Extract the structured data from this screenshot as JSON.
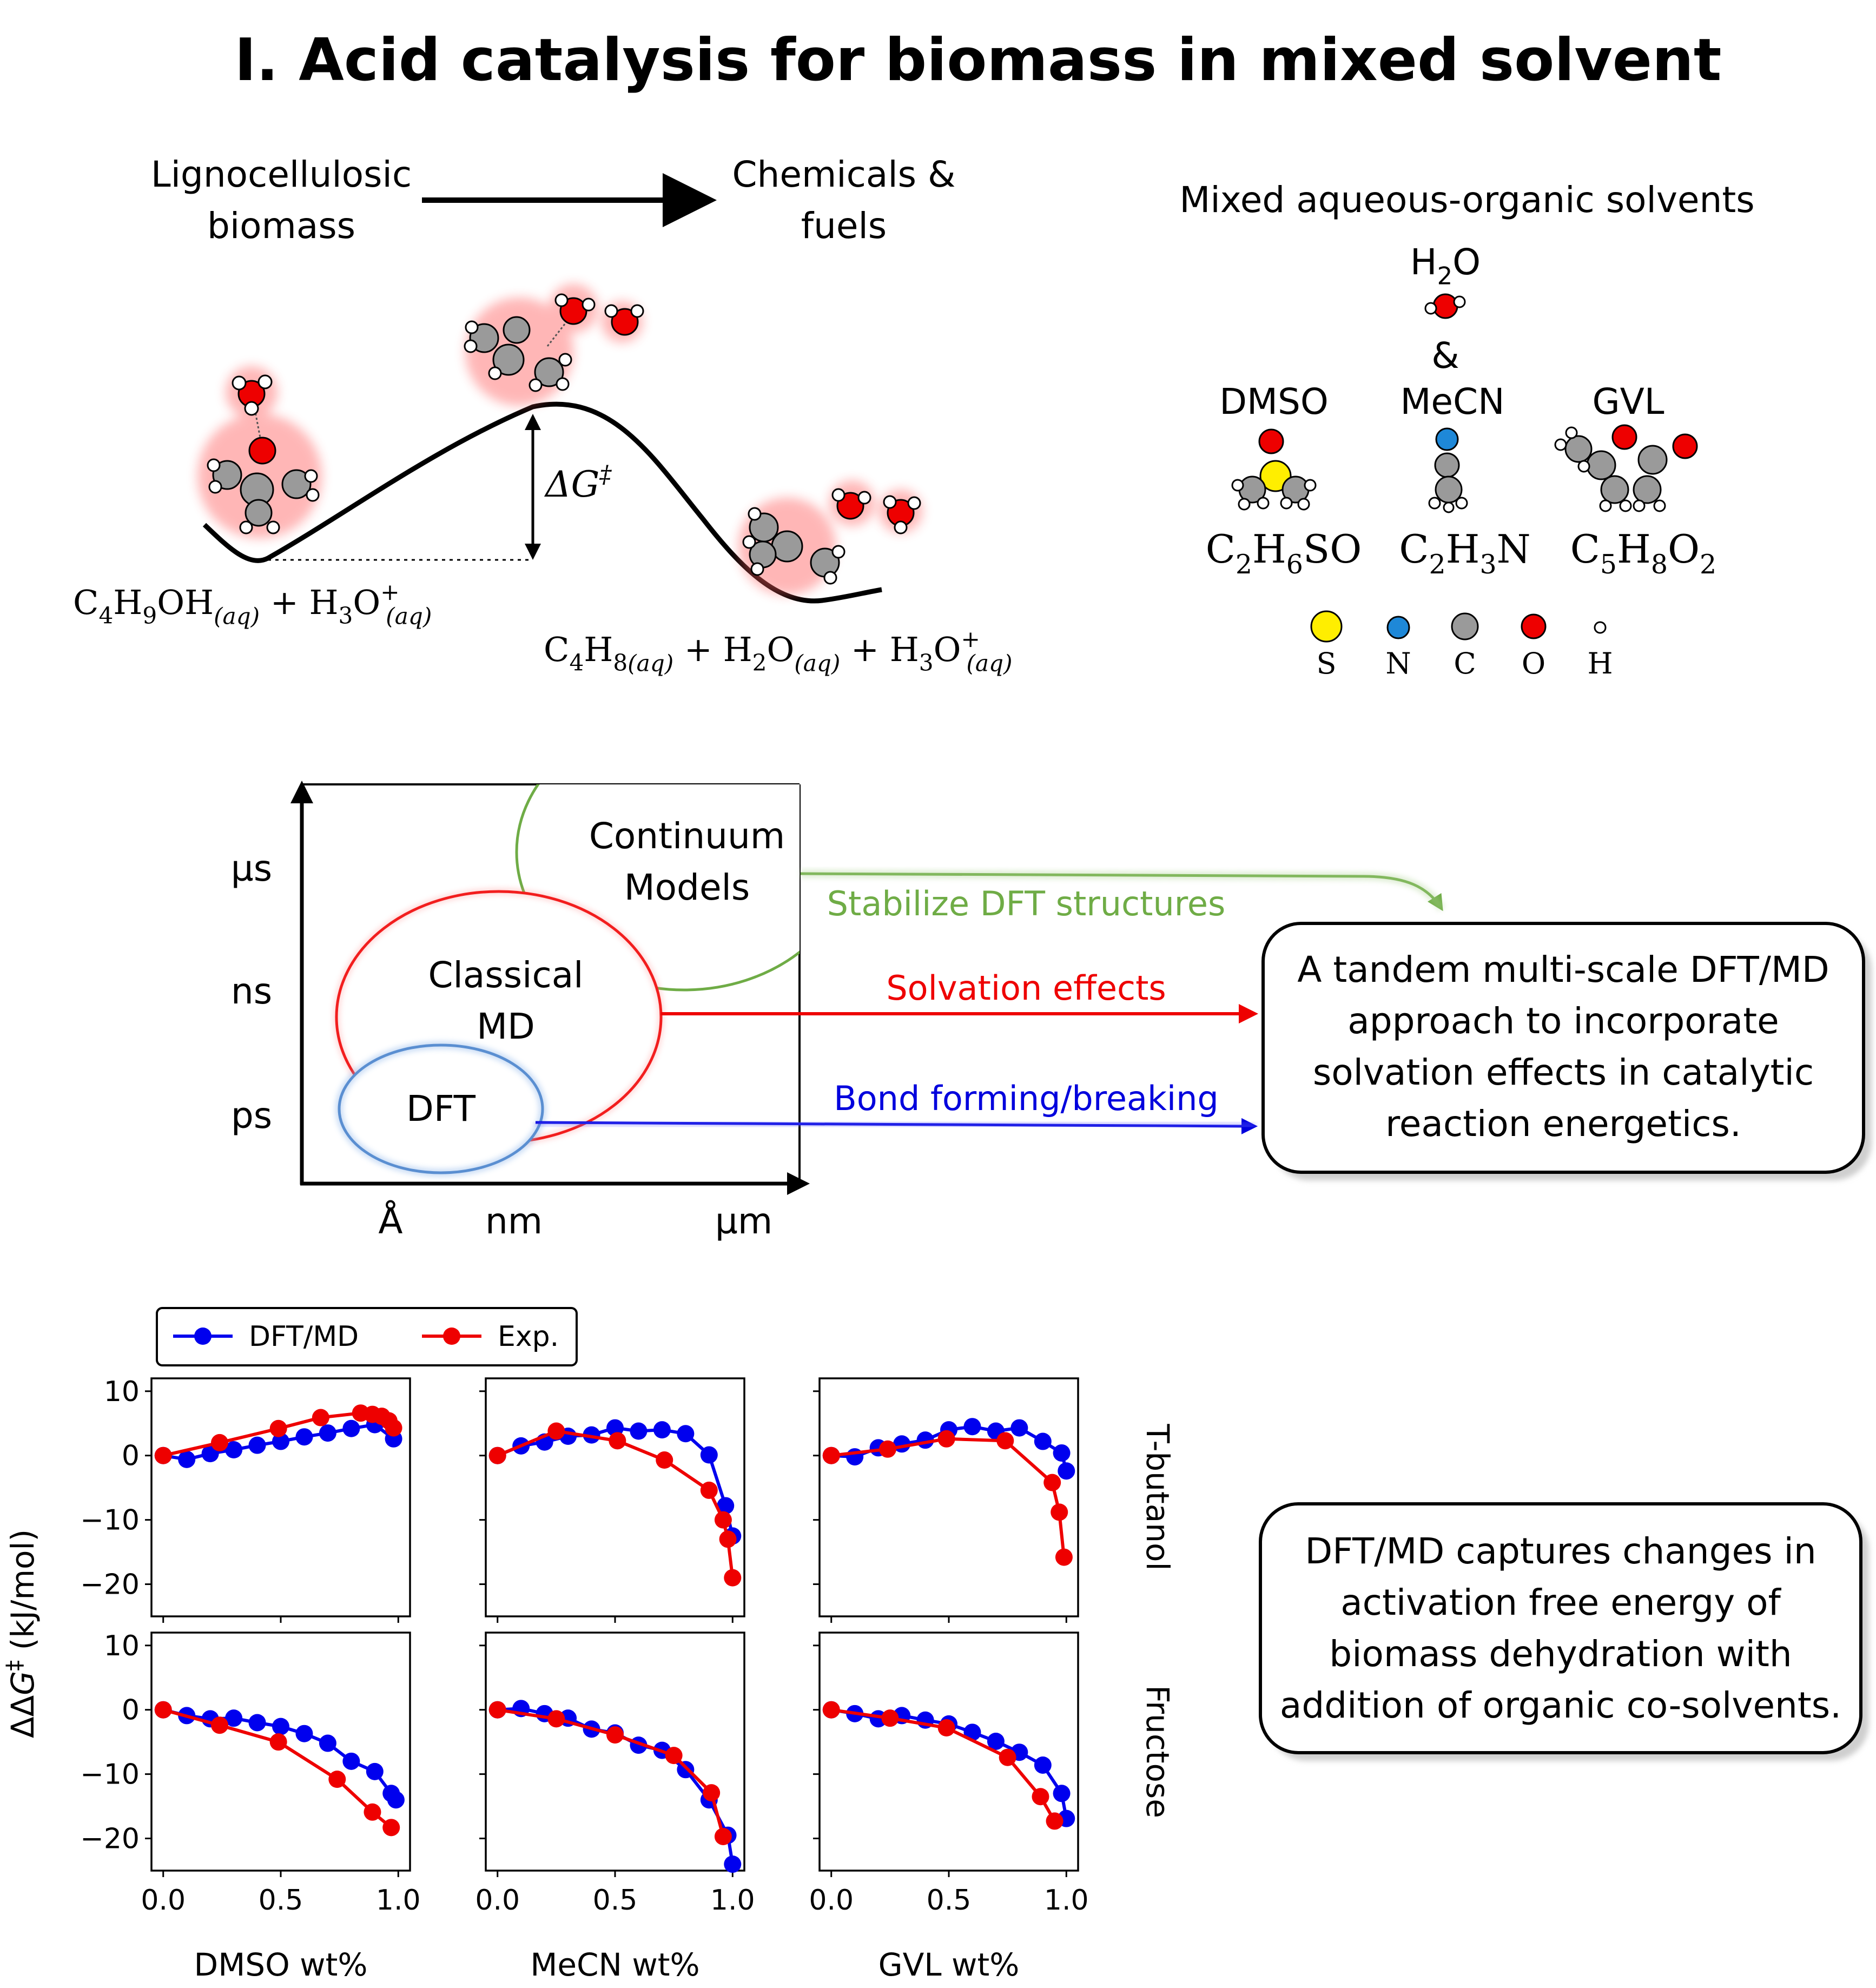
{
  "title": "I. Acid catalysis for biomass in mixed solvent",
  "reaction_scheme": {
    "from_label": [
      "Lignocellulosic",
      "biomass"
    ],
    "to_label": [
      "Chemicals &",
      "fuels"
    ]
  },
  "energy_profile": {
    "barrier_label": "ΔG‡",
    "reactants": "C4H9OH(aq) + H3O+(aq)",
    "products": "C4H8(aq) + H2O(aq) + H3O+(aq)"
  },
  "solvents": {
    "heading": "Mixed aqueous-organic solvents",
    "water": "H2O",
    "ampersand": "&",
    "items": [
      {
        "name": "DMSO",
        "formula": "C2H6SO"
      },
      {
        "name": "MeCN",
        "formula": "C2H3N"
      },
      {
        "name": "GVL",
        "formula": "C5H8O2"
      }
    ],
    "atom_legend": [
      {
        "symbol": "S",
        "color": "#ffee00"
      },
      {
        "symbol": "N",
        "color": "#1e88d8"
      },
      {
        "symbol": "C",
        "color": "#9a9a9a"
      },
      {
        "symbol": "O",
        "color": "#ee0000"
      },
      {
        "symbol": "H",
        "color": "#ffffff"
      }
    ]
  },
  "multiscale": {
    "y_ticks": [
      "µs",
      "ns",
      "ps"
    ],
    "x_ticks": [
      "Å",
      "nm",
      "µm"
    ],
    "regions": {
      "continuum": [
        "Continuum",
        "Models"
      ],
      "classical": [
        "Classical",
        "MD"
      ],
      "dft": "DFT"
    },
    "arrows": [
      {
        "label": "Stabilize DFT structures",
        "color": "#6fac46"
      },
      {
        "label": "Solvation effects",
        "color": "#ee0000"
      },
      {
        "label": "Bond forming/breaking",
        "color": "#0000dd"
      }
    ],
    "summary_box": [
      "A tandem multi-scale DFT/MD",
      "approach to incorporate",
      "solvation effects in catalytic",
      "reaction energetics."
    ]
  },
  "conclusion_box": [
    "DFT/MD captures changes in",
    "activation free energy of",
    "biomass dehydration with",
    "addition of organic co-solvents."
  ],
  "chart_data": {
    "type": "line",
    "ylabel": "ΔΔG‡ (kJ/mol)",
    "ylim": [
      -25,
      12
    ],
    "y_ticks": [
      10,
      0,
      -10,
      -20
    ],
    "xlim": [
      -0.05,
      1.05
    ],
    "x_ticks": [
      "0.0",
      "0.5",
      "1.0"
    ],
    "x_tick_values": [
      0,
      0.5,
      1
    ],
    "legend": [
      {
        "name": "DFT/MD",
        "color": "#0000ee"
      },
      {
        "name": "Exp.",
        "color": "#ee0000"
      }
    ],
    "columns": [
      "DMSO wt%",
      "MeCN wt%",
      "GVL wt%"
    ],
    "rows": [
      "T-butanol",
      "Fructose"
    ],
    "panels": [
      {
        "row": 0,
        "col": 0,
        "series": [
          {
            "name": "DFT/MD",
            "x": [
              0,
              0.1,
              0.2,
              0.3,
              0.4,
              0.5,
              0.6,
              0.7,
              0.8,
              0.9,
              0.98
            ],
            "y": [
              0,
              -0.6,
              0.3,
              0.9,
              1.6,
              2.2,
              2.9,
              3.5,
              4.2,
              4.8,
              2.6
            ]
          },
          {
            "name": "Exp.",
            "x": [
              0,
              0.24,
              0.49,
              0.67,
              0.84,
              0.89,
              0.93,
              0.96,
              0.98
            ],
            "y": [
              0,
              2,
              4.2,
              5.9,
              6.6,
              6.4,
              6.1,
              5.4,
              4.3
            ]
          }
        ]
      },
      {
        "row": 0,
        "col": 1,
        "series": [
          {
            "name": "DFT/MD",
            "x": [
              0,
              0.1,
              0.2,
              0.3,
              0.4,
              0.5,
              0.6,
              0.7,
              0.8,
              0.9,
              0.97,
              1.0
            ],
            "y": [
              0,
              1.5,
              2.1,
              3,
              3.2,
              4.3,
              3.8,
              4,
              3.4,
              0.1,
              -7.8,
              -12.5
            ]
          },
          {
            "name": "Exp.",
            "x": [
              0,
              0.25,
              0.51,
              0.71,
              0.9,
              0.96,
              0.98,
              1.0
            ],
            "y": [
              0,
              3.8,
              2.3,
              -0.7,
              -5.4,
              -10,
              -13,
              -19
            ]
          }
        ]
      },
      {
        "row": 0,
        "col": 2,
        "series": [
          {
            "name": "DFT/MD",
            "x": [
              0,
              0.1,
              0.2,
              0.3,
              0.4,
              0.5,
              0.6,
              0.7,
              0.8,
              0.9,
              0.98,
              1.0
            ],
            "y": [
              0,
              -0.2,
              1.2,
              1.8,
              2.4,
              4,
              4.5,
              3.8,
              4.3,
              2.2,
              0.4,
              -2.4
            ]
          },
          {
            "name": "Exp.",
            "x": [
              0,
              0.24,
              0.49,
              0.74,
              0.94,
              0.97,
              0.99
            ],
            "y": [
              0,
              1,
              2.6,
              2.3,
              -4.2,
              -8.8,
              -15.8
            ]
          }
        ]
      },
      {
        "row": 1,
        "col": 0,
        "series": [
          {
            "name": "DFT/MD",
            "x": [
              0,
              0.1,
              0.2,
              0.3,
              0.4,
              0.5,
              0.6,
              0.7,
              0.8,
              0.9,
              0.97,
              0.99
            ],
            "y": [
              0,
              -0.9,
              -1.4,
              -1.3,
              -2,
              -2.6,
              -3.7,
              -5.2,
              -8,
              -9.6,
              -13,
              -14
            ]
          },
          {
            "name": "Exp.",
            "x": [
              0,
              0.24,
              0.49,
              0.74,
              0.89,
              0.97
            ],
            "y": [
              0,
              -2.4,
              -5,
              -10.8,
              -15.9,
              -18.3
            ]
          }
        ]
      },
      {
        "row": 1,
        "col": 1,
        "series": [
          {
            "name": "DFT/MD",
            "x": [
              0,
              0.1,
              0.2,
              0.3,
              0.4,
              0.5,
              0.6,
              0.7,
              0.8,
              0.9,
              0.98,
              1.0
            ],
            "y": [
              0,
              0.2,
              -0.6,
              -1.3,
              -3,
              -3.6,
              -5.5,
              -6.3,
              -9.3,
              -14,
              -19.5,
              -24
            ]
          },
          {
            "name": "Exp.",
            "x": [
              0,
              0.25,
              0.5,
              0.75,
              0.91,
              0.96
            ],
            "y": [
              0,
              -1.4,
              -3.9,
              -7.1,
              -12.9,
              -19.7
            ]
          }
        ]
      },
      {
        "row": 1,
        "col": 2,
        "series": [
          {
            "name": "DFT/MD",
            "x": [
              0,
              0.1,
              0.2,
              0.3,
              0.4,
              0.5,
              0.6,
              0.7,
              0.8,
              0.9,
              0.98,
              1.0
            ],
            "y": [
              0,
              -0.6,
              -1.4,
              -0.9,
              -1.6,
              -2.2,
              -3.5,
              -4.9,
              -6.6,
              -8.6,
              -13,
              -16.9
            ]
          },
          {
            "name": "Exp.",
            "x": [
              0,
              0.25,
              0.49,
              0.75,
              0.89,
              0.95
            ],
            "y": [
              0,
              -1.3,
              -2.8,
              -7.4,
              -13.5,
              -17.3
            ]
          }
        ]
      }
    ]
  }
}
